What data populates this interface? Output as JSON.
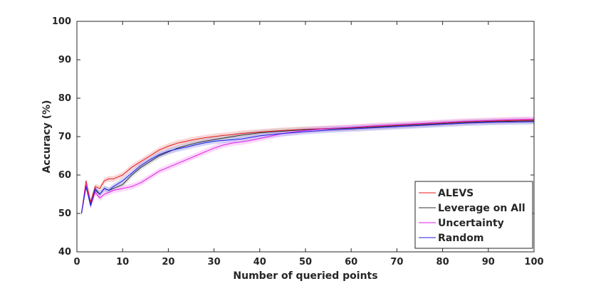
{
  "chart_data": {
    "type": "line",
    "title": "",
    "xlabel": "Number of queried points",
    "ylabel": "Accuracy (%)",
    "xlim": [
      0,
      100
    ],
    "ylim": [
      40,
      100
    ],
    "xticks": [
      0,
      10,
      20,
      30,
      40,
      50,
      60,
      70,
      80,
      90,
      100
    ],
    "yticks": [
      40,
      50,
      60,
      70,
      80,
      90,
      100
    ],
    "grid": false,
    "legend_position": "bottom-right",
    "series": [
      {
        "name": "ALEVS",
        "color": "#e41a1c",
        "band": "#f4a3a3",
        "points": [
          [
            1,
            50
          ],
          [
            2,
            58.5
          ],
          [
            3,
            53
          ],
          [
            4,
            57
          ],
          [
            5,
            56.5
          ],
          [
            6,
            58.5
          ],
          [
            7,
            59
          ],
          [
            8,
            59
          ],
          [
            10,
            60
          ],
          [
            12,
            62
          ],
          [
            14,
            63.5
          ],
          [
            16,
            65
          ],
          [
            18,
            66.5
          ],
          [
            20,
            67.5
          ],
          [
            22,
            68.3
          ],
          [
            24,
            68.8
          ],
          [
            26,
            69.3
          ],
          [
            28,
            69.7
          ],
          [
            30,
            70
          ],
          [
            32,
            70.3
          ],
          [
            34,
            70.5
          ],
          [
            36,
            70.8
          ],
          [
            38,
            71
          ],
          [
            40,
            71.2
          ],
          [
            45,
            71.6
          ],
          [
            50,
            71.9
          ],
          [
            55,
            72.1
          ],
          [
            60,
            72.3
          ],
          [
            65,
            72.6
          ],
          [
            70,
            72.9
          ],
          [
            75,
            73.2
          ],
          [
            80,
            73.5
          ],
          [
            85,
            73.8
          ],
          [
            90,
            74
          ],
          [
            95,
            74.2
          ],
          [
            100,
            74.3
          ]
        ]
      },
      {
        "name": "Leverage on All",
        "color": "#333333",
        "band": "#bfbfbf",
        "points": [
          [
            1,
            50
          ],
          [
            2,
            57
          ],
          [
            3,
            52.5
          ],
          [
            4,
            56
          ],
          [
            5,
            55
          ],
          [
            6,
            56.5
          ],
          [
            7,
            56
          ],
          [
            8,
            56.5
          ],
          [
            10,
            57.5
          ],
          [
            12,
            60
          ],
          [
            14,
            62
          ],
          [
            16,
            63.5
          ],
          [
            18,
            65
          ],
          [
            20,
            66
          ],
          [
            22,
            67
          ],
          [
            24,
            67.7
          ],
          [
            26,
            68.3
          ],
          [
            28,
            68.8
          ],
          [
            30,
            69.2
          ],
          [
            32,
            69.6
          ],
          [
            34,
            70
          ],
          [
            36,
            70.4
          ],
          [
            38,
            70.7
          ],
          [
            40,
            71
          ],
          [
            45,
            71.4
          ],
          [
            50,
            71.8
          ],
          [
            55,
            72
          ],
          [
            60,
            72.2
          ],
          [
            65,
            72.5
          ],
          [
            70,
            72.8
          ],
          [
            75,
            73.1
          ],
          [
            80,
            73.4
          ],
          [
            85,
            73.7
          ],
          [
            90,
            73.9
          ],
          [
            95,
            74
          ],
          [
            100,
            74.1
          ]
        ]
      },
      {
        "name": "Uncertainty",
        "color": "#e31ae3",
        "band": "#f7a8f7",
        "points": [
          [
            1,
            50
          ],
          [
            2,
            57.5
          ],
          [
            3,
            52
          ],
          [
            4,
            55.5
          ],
          [
            5,
            54
          ],
          [
            6,
            55
          ],
          [
            7,
            55.5
          ],
          [
            8,
            56
          ],
          [
            10,
            56.5
          ],
          [
            12,
            57
          ],
          [
            14,
            58
          ],
          [
            16,
            59.5
          ],
          [
            18,
            61
          ],
          [
            20,
            62
          ],
          [
            22,
            63
          ],
          [
            24,
            64
          ],
          [
            26,
            65
          ],
          [
            28,
            66
          ],
          [
            30,
            67
          ],
          [
            32,
            67.8
          ],
          [
            34,
            68.3
          ],
          [
            36,
            68.6
          ],
          [
            38,
            69
          ],
          [
            40,
            69.5
          ],
          [
            45,
            70.8
          ],
          [
            50,
            71.6
          ],
          [
            55,
            72.1
          ],
          [
            60,
            72.4
          ],
          [
            65,
            72.8
          ],
          [
            70,
            73.1
          ],
          [
            75,
            73.4
          ],
          [
            80,
            73.7
          ],
          [
            85,
            74
          ],
          [
            90,
            74.2
          ],
          [
            95,
            74.4
          ],
          [
            100,
            74.5
          ]
        ]
      },
      {
        "name": "Random",
        "color": "#1f1fe6",
        "band": "#a9a9f7",
        "points": [
          [
            1,
            50
          ],
          [
            2,
            57
          ],
          [
            3,
            52
          ],
          [
            4,
            56.5
          ],
          [
            5,
            55
          ],
          [
            6,
            56.5
          ],
          [
            7,
            56
          ],
          [
            8,
            57
          ],
          [
            10,
            58.5
          ],
          [
            12,
            60.5
          ],
          [
            14,
            62.5
          ],
          [
            16,
            64
          ],
          [
            18,
            65.3
          ],
          [
            20,
            66.2
          ],
          [
            22,
            66.8
          ],
          [
            24,
            67.3
          ],
          [
            26,
            67.9
          ],
          [
            28,
            68.4
          ],
          [
            30,
            68.8
          ],
          [
            32,
            69
          ],
          [
            34,
            69.2
          ],
          [
            36,
            69.4
          ],
          [
            38,
            69.8
          ],
          [
            40,
            70.2
          ],
          [
            45,
            70.8
          ],
          [
            50,
            71.3
          ],
          [
            55,
            71.7
          ],
          [
            60,
            72
          ],
          [
            65,
            72.3
          ],
          [
            70,
            72.6
          ],
          [
            75,
            72.9
          ],
          [
            80,
            73.2
          ],
          [
            85,
            73.5
          ],
          [
            90,
            73.7
          ],
          [
            95,
            73.8
          ],
          [
            100,
            73.9
          ]
        ]
      }
    ]
  }
}
